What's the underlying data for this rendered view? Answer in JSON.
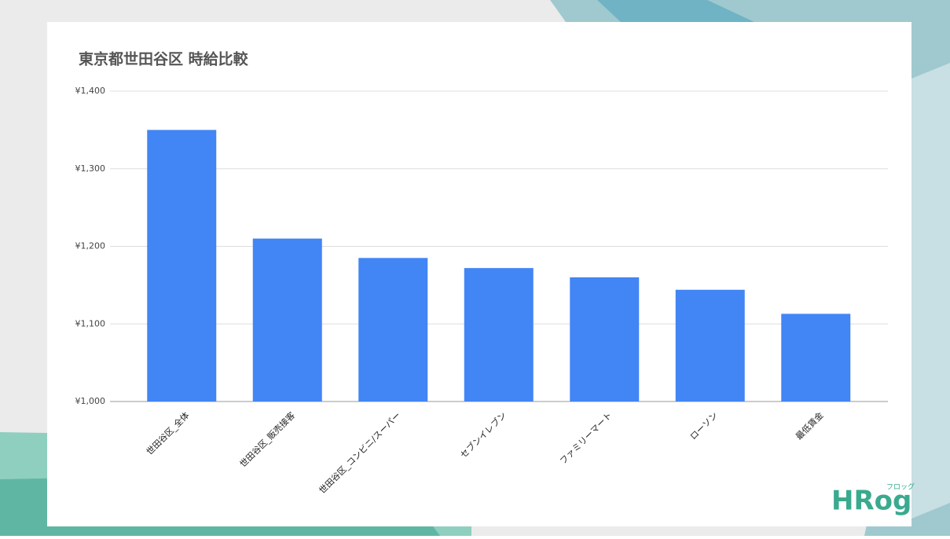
{
  "chart_data": {
    "type": "bar",
    "title": "東京都世田谷区 時給比較",
    "categories": [
      "世田谷区_全体",
      "世田谷区_販売接客",
      "世田谷区_コンビニ/スーパー",
      "セブンイレブン",
      "ファミリーマート",
      "ローソン",
      "最低賃金"
    ],
    "values": [
      1350,
      1210,
      1185,
      1172,
      1160,
      1144,
      1113
    ],
    "color": "#4285f4",
    "ylim": [
      1000,
      1400
    ],
    "yticks": [
      {
        "value": 1000,
        "label": "¥1,000"
      },
      {
        "value": 1100,
        "label": "¥1,100"
      },
      {
        "value": 1200,
        "label": "¥1,200"
      },
      {
        "value": 1300,
        "label": "¥1,300"
      },
      {
        "value": 1400,
        "label": "¥1,400"
      }
    ],
    "grid": true
  },
  "logo": {
    "text": "HRog",
    "ruby": "フロッグ"
  }
}
